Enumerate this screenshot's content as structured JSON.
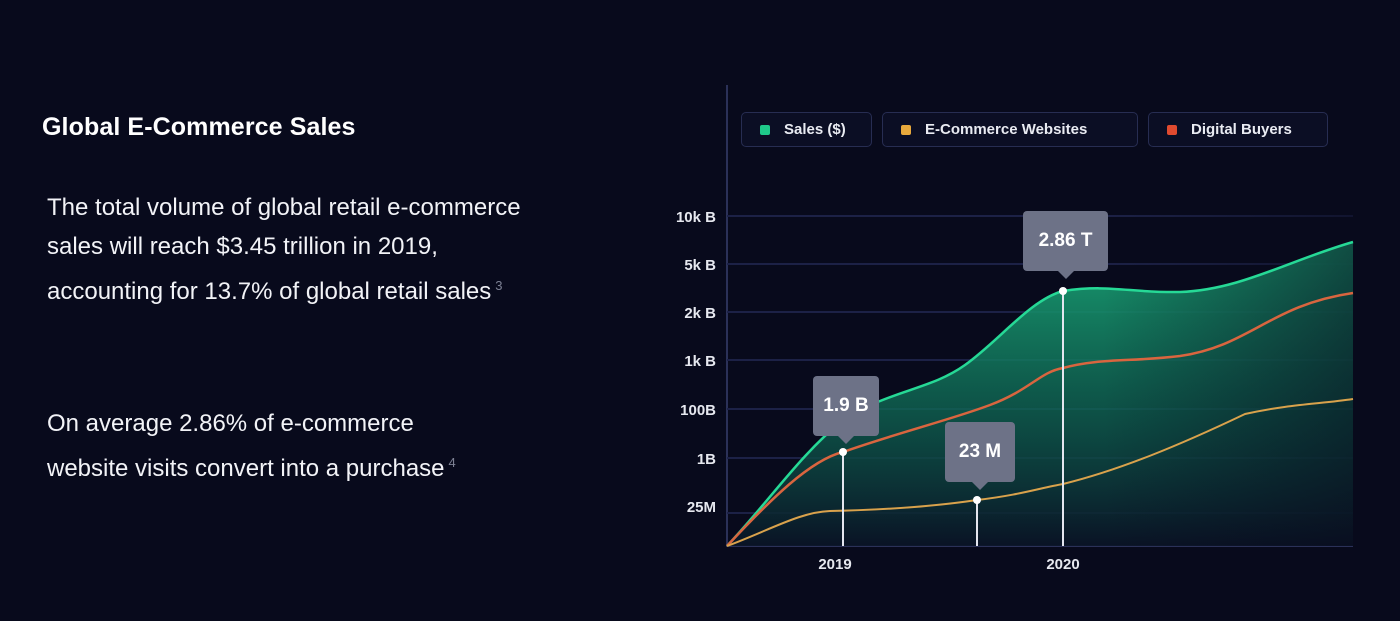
{
  "heading": "Global E-Commerce Sales",
  "paragraphs": [
    {
      "text": "The total volume of global retail e-commerce sales will reach $3.45 trillion in 2019, accounting for 13.7% of global retail sales",
      "ref": "3"
    },
    {
      "text": "On average 2.86% of e-commerce website visits convert into a purchase",
      "ref": "4"
    }
  ],
  "chart_data": {
    "type": "area",
    "y_scale": "log",
    "y_ticks": [
      "10k B",
      "5k B",
      "2k B",
      "1k B",
      "100B",
      "1B",
      "25M"
    ],
    "x_ticks": [
      "2019",
      "2020"
    ],
    "series": [
      {
        "name": "Sales ($)",
        "color": "#1fc98a",
        "style": "filled-area"
      },
      {
        "name": "E-Commerce Websites",
        "color": "#e8a93c",
        "style": "line"
      },
      {
        "name": "Digital Buyers",
        "color": "#e04a2f",
        "style": "line"
      }
    ],
    "annotations": [
      {
        "label": "2.86 T",
        "series": "Sales ($)",
        "x": "2020"
      },
      {
        "label": "1.9 B",
        "series": "Digital Buyers",
        "x": "2019"
      },
      {
        "label": "23 M",
        "series": "E-Commerce Websites",
        "x": "between 2019 and 2020"
      }
    ],
    "grid": true,
    "legend_position": "top"
  }
}
